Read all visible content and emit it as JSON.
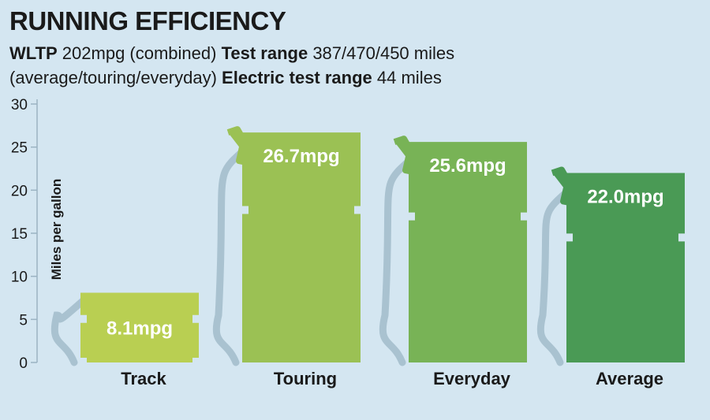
{
  "header": {
    "title": "RUNNING EFFICIENCY",
    "line1_label1": "WLTP",
    "line1_value1": " 202mpg (combined) ",
    "line1_label2": "Test range",
    "line1_value2": " 387/470/450 miles",
    "line2_value1": "(average/touring/everyday) ",
    "line2_label": "Electric test range",
    "line2_value2": " 44 miles"
  },
  "chart_data": {
    "type": "bar",
    "title": "RUNNING EFFICIENCY",
    "xlabel": "",
    "ylabel": "Miles per gallon",
    "ylim": [
      0,
      30
    ],
    "yticks": [
      0,
      5,
      10,
      15,
      20,
      25,
      30
    ],
    "categories": [
      "Track",
      "Touring",
      "Everyday",
      "Average"
    ],
    "values": [
      8.1,
      26.7,
      25.6,
      22.0
    ],
    "labels": [
      "8.1mpg",
      "26.7mpg",
      "25.6mpg",
      "22.0mpg"
    ],
    "colors": [
      "#b9cf52",
      "#9bc154",
      "#78b356",
      "#4a9a55"
    ],
    "hose_color": "#a9c2d0",
    "grid": false
  }
}
